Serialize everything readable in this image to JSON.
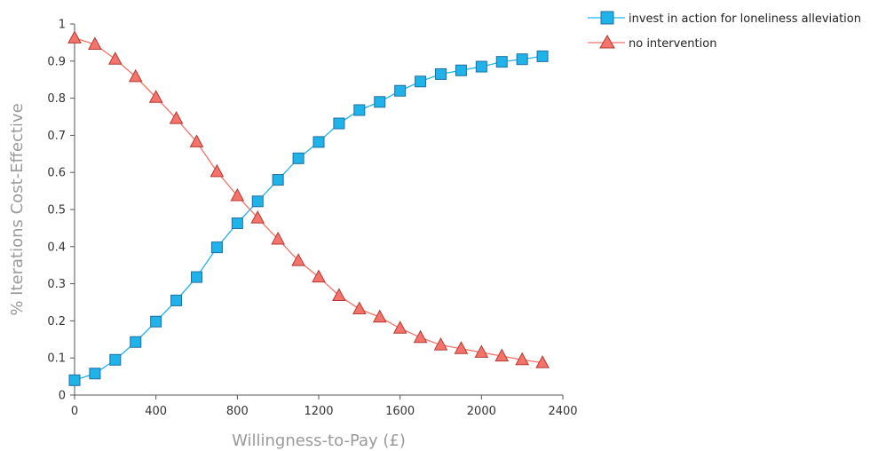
{
  "chart_data": {
    "type": "line",
    "title": "",
    "xlabel": "Willingness-to-Pay (£)",
    "ylabel": "% Iterations Cost-Effective",
    "xlim": [
      0,
      2400
    ],
    "ylim": [
      0,
      1
    ],
    "x_ticks": [
      0,
      400,
      800,
      1200,
      1600,
      2000,
      2400
    ],
    "x_tick_labels": [
      "0",
      "400",
      "800",
      "1200",
      "1600",
      "2000",
      "2400"
    ],
    "y_ticks": [
      0,
      0.1,
      0.2,
      0.3,
      0.4,
      0.5,
      0.6,
      0.7,
      0.8,
      0.9,
      1
    ],
    "y_tick_labels": [
      "0",
      "0.1",
      "0.2",
      "0.3",
      "0.4",
      "0.5",
      "0.6",
      "0.7",
      "0.8",
      "0.9",
      "1"
    ],
    "grid": false,
    "legend_position": "top-right",
    "x": [
      0,
      100,
      200,
      300,
      400,
      500,
      600,
      700,
      800,
      900,
      1000,
      1100,
      1200,
      1300,
      1400,
      1500,
      1600,
      1700,
      1800,
      1900,
      2000,
      2100,
      2200,
      2300
    ],
    "series": [
      {
        "name": "invest in action for loneliness alleviation",
        "color": "#1fb3ea",
        "stroke": "#1f6fa0",
        "marker": "square",
        "values": [
          0.04,
          0.058,
          0.095,
          0.143,
          0.198,
          0.255,
          0.318,
          0.398,
          0.463,
          0.522,
          0.58,
          0.638,
          0.682,
          0.732,
          0.768,
          0.79,
          0.82,
          0.845,
          0.865,
          0.875,
          0.885,
          0.898,
          0.905,
          0.913
        ]
      },
      {
        "name": "no intervention",
        "color": "#f4736a",
        "stroke": "#b33a33",
        "marker": "triangle",
        "values": [
          0.962,
          0.945,
          0.905,
          0.858,
          0.802,
          0.745,
          0.682,
          0.602,
          0.537,
          0.477,
          0.42,
          0.362,
          0.318,
          0.268,
          0.232,
          0.21,
          0.18,
          0.155,
          0.135,
          0.125,
          0.115,
          0.105,
          0.095,
          0.087
        ]
      }
    ]
  }
}
